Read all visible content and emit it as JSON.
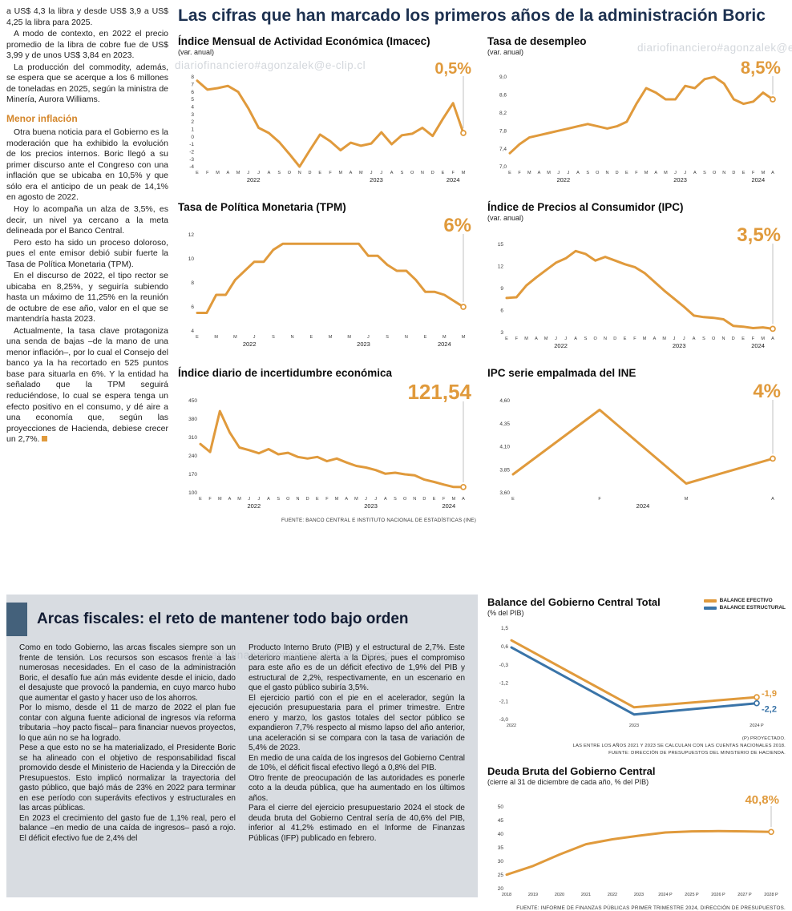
{
  "main_title": "Las cifras que han marcado los primeros años de la administración Boric",
  "watermark": "diariofinanciero#agonzalek@e-clip.cl",
  "article": {
    "paragraphs": [
      "a US$ 4,3 la libra y desde US$ 3,9 a US$ 4,25 la libra para 2025.",
      "A modo de contexto, en 2022 el precio promedio de la libra de cobre fue de US$ 3,99 y de unos US$ 3,84 en 2023.",
      "La producción del commodity, además, se espera que se acerque a los 6 millones de toneladas en 2025, según la ministra de Minería, Aurora Williams."
    ],
    "subhead": "Menor inflación",
    "paragraphs2": [
      "Otra buena noticia para el Gobierno es la moderación que ha exhibido la evolución de los precios internos. Boric llegó a su primer discurso ante el Congreso con una inflación que se ubicaba en 10,5% y que sólo era el anticipo de un peak de 14,1% en agosto de 2022.",
      "Hoy lo acompaña un alza de 3,5%, es decir, un nivel ya cercano a la meta delineada por el Banco Central.",
      "Pero esto ha sido un proceso doloroso, pues el ente emisor debió subir fuerte la Tasa de Política Monetaria (TPM).",
      "En el discurso de 2022, el tipo rector se ubicaba en 8,25%, y seguiría subiendo hasta un máximo de 11,25% en la reunión de octubre de ese año, valor en el que se mantendría hasta 2023.",
      "Actualmente, la tasa clave protagoniza una senda de bajas –de la mano de una menor inflación–, por lo cual el Consejo del banco ya la ha recortado en 525 puntos base para situarla en 6%. Y la entidad ha señalado que la TPM seguirá reduciéndose, lo cual se espera tenga un efecto positivo en el consumo, y dé aire a una economía que, según las proyecciones de Hacienda, debiese crecer un 2,7%."
    ]
  },
  "fiscal": {
    "title": "Arcas fiscales: el reto de mantener todo bajo orden",
    "col1": [
      "Como en todo Gobierno, las arcas fiscales siempre son un frente de tensión. Los recursos son escasos frente a las numerosas necesidades. En el caso de la administración Boric, el desafío fue aún más evidente desde el inicio, dado el desajuste que provocó la pandemia, en cuyo marco hubo que aumentar el gasto y hacer uso de los ahorros.",
      "Por lo mismo, desde el 11 de marzo de 2022 el plan fue contar con alguna fuente adicional de ingresos vía reforma tributaria –hoy pacto fiscal– para financiar nuevos proyectos, lo que aún no se ha logrado.",
      "Pese a que esto no se ha materializado, el Presidente Boric se ha alineado con el objetivo de responsabilidad fiscal promovido desde el Ministerio de Hacienda y la Dirección de Presupuestos. Esto implicó normalizar la trayectoria del gasto público, que bajó más de 23% en 2022 para terminar en ese período con superávits efectivos y estructurales en las arcas públicas.",
      "En 2023 el crecimiento del gasto fue de 1,1% real, pero el balance –en medio de una caída de ingresos– pasó a rojo. El déficit efectivo fue de 2,4% del"
    ],
    "col2": [
      "Producto Interno Bruto (PIB) y el estructural de 2,7%. Este deterioro mantiene alerta a la Dipres, pues el compromiso para este año es de un déficit efectivo de 1,9% del PIB y estructural de 2,2%, respectivamente, en un escenario en que el gasto público subiría 3,5%.",
      "El ejercicio partió con el pie en el acelerador, según la ejecución presupuestaria para el primer trimestre. Entre enero y marzo, los gastos totales del sector público se expandieron 7,7% respecto al mismo lapso del año anterior, una aceleración si se compara con la tasa de variación de 5,4% de 2023.",
      "En medio de una caída de los ingresos del Gobierno Central de 10%, el déficit fiscal efectivo llegó a 0,8% del PIB.",
      "Otro frente de preocupación de las autoridades es ponerle coto a la deuda pública, que ha aumentado en los últimos años.",
      "Para el cierre del ejercicio presupuestario 2024 el stock de deuda bruta del Gobierno Central sería de 40,6% del PIB, inferior al 41,2% estimado en el Informe de Finanzas Públicas (IFP) publicado en febrero."
    ]
  },
  "chart_data": [
    {
      "type": "line",
      "title": "Índice Mensual de Actividad Económica (Imacec)",
      "subtitle": "(var. anual)",
      "ylim": [
        -4,
        8
      ],
      "yticks": [
        {
          "v": 8,
          "label": "8"
        },
        {
          "v": 7,
          "label": "7"
        },
        {
          "v": 6,
          "label": "6"
        },
        {
          "v": 5,
          "label": "5"
        },
        {
          "v": 4,
          "label": "4"
        },
        {
          "v": 3,
          "label": "3"
        },
        {
          "v": 2,
          "label": "2"
        },
        {
          "v": 1,
          "label": "1"
        },
        {
          "v": 0,
          "label": "0"
        },
        {
          "v": -1,
          "label": "-1"
        },
        {
          "v": -2,
          "label": "-2"
        },
        {
          "v": -3,
          "label": "-3"
        },
        {
          "v": -4,
          "label": "-4"
        }
      ],
      "xlabels": [
        "E",
        "F",
        "M",
        "A",
        "M",
        "J",
        "J",
        "A",
        "S",
        "O",
        "N",
        "D",
        "E",
        "F",
        "M",
        "A",
        "M",
        "J",
        "J",
        "A",
        "S",
        "O",
        "N",
        "D",
        "E",
        "F",
        "M"
      ],
      "years": [
        {
          "label": "2022",
          "from": 0,
          "to": 11
        },
        {
          "label": "2023",
          "from": 12,
          "to": 23
        },
        {
          "label": "2024",
          "from": 24,
          "to": 26
        }
      ],
      "series": [
        {
          "name": "Imacec",
          "color": "#E09A3C",
          "width": 3,
          "values": [
            7.5,
            6.3,
            6.5,
            6.8,
            6.0,
            3.8,
            1.2,
            0.5,
            -0.7,
            -2.3,
            -4.0,
            -1.8,
            0.3,
            -0.6,
            -1.8,
            -0.8,
            -1.2,
            -0.9,
            0.6,
            -1.0,
            0.2,
            0.4,
            1.2,
            0.1,
            2.4,
            4.5,
            0.5
          ]
        }
      ],
      "end_label": {
        "text": "0,5%",
        "size": 20,
        "y": 20,
        "color": "#E09A3C"
      },
      "margins": {
        "l": 24,
        "r": 16,
        "t": 24,
        "b": 24
      }
    },
    {
      "type": "line",
      "title": "Tasa de desempleo",
      "subtitle": "(var. anual)",
      "ylim": [
        7.0,
        9.0
      ],
      "yticks": [
        {
          "v": 9.0,
          "label": "9,0"
        },
        {
          "v": 8.6,
          "label": "8,6"
        },
        {
          "v": 8.2,
          "label": "8,2"
        },
        {
          "v": 7.8,
          "label": "7,8"
        },
        {
          "v": 7.4,
          "label": "7,4"
        },
        {
          "v": 7.0,
          "label": "7,0"
        }
      ],
      "xlabels": [
        "E",
        "F",
        "M",
        "A",
        "M",
        "J",
        "J",
        "A",
        "S",
        "O",
        "N",
        "D",
        "E",
        "F",
        "M",
        "A",
        "M",
        "J",
        "J",
        "A",
        "S",
        "O",
        "N",
        "D",
        "E",
        "F",
        "M",
        "A"
      ],
      "years": [
        {
          "label": "2022",
          "from": 0,
          "to": 11
        },
        {
          "label": "2023",
          "from": 12,
          "to": 23
        },
        {
          "label": "2024",
          "from": 24,
          "to": 27
        }
      ],
      "series": [
        {
          "name": "Tasa de desempleo",
          "color": "#E09A3C",
          "width": 3,
          "values": [
            7.3,
            7.5,
            7.65,
            7.7,
            7.75,
            7.8,
            7.85,
            7.9,
            7.95,
            7.9,
            7.85,
            7.9,
            8.0,
            8.4,
            8.75,
            8.65,
            8.5,
            8.5,
            8.8,
            8.75,
            8.95,
            9.0,
            8.85,
            8.5,
            8.4,
            8.45,
            8.65,
            8.5
          ]
        }
      ],
      "end_label": {
        "text": "8,5%",
        "size": 22,
        "y": 20,
        "color": "#E09A3C"
      },
      "margins": {
        "l": 28,
        "r": 16,
        "t": 24,
        "b": 24
      }
    },
    {
      "type": "line",
      "title": "Tasa de Política Monetaria (TPM)",
      "subtitle": "",
      "ylim": [
        4,
        12
      ],
      "yticks": [
        {
          "v": 12,
          "label": "12"
        },
        {
          "v": 10,
          "label": "10"
        },
        {
          "v": 8,
          "label": "8"
        },
        {
          "v": 6,
          "label": "6"
        },
        {
          "v": 4,
          "label": "4"
        }
      ],
      "xlabels": [
        "E",
        "",
        "M",
        "",
        "M",
        "",
        "J",
        "",
        "S",
        "",
        "N",
        "",
        "E",
        "",
        "M",
        "",
        "M",
        "",
        "J",
        "",
        "S",
        "",
        "N",
        "",
        "E",
        "",
        "M",
        "",
        "M"
      ],
      "years": [
        {
          "label": "2022",
          "from": 0,
          "to": 11
        },
        {
          "label": "2023",
          "from": 12,
          "to": 23
        },
        {
          "label": "2024",
          "from": 24,
          "to": 28
        }
      ],
      "series": [
        {
          "name": "TPM",
          "color": "#E09A3C",
          "width": 3,
          "values": [
            5.5,
            5.5,
            7.0,
            7.0,
            8.25,
            9.0,
            9.75,
            9.75,
            10.75,
            11.25,
            11.25,
            11.25,
            11.25,
            11.25,
            11.25,
            11.25,
            11.25,
            11.25,
            10.25,
            10.25,
            9.5,
            9.0,
            9.0,
            8.25,
            7.25,
            7.25,
            7.0,
            6.5,
            6.0
          ]
        }
      ],
      "end_label": {
        "text": "6%",
        "size": 24,
        "y": 22,
        "color": "#E09A3C"
      },
      "margins": {
        "l": 24,
        "r": 16,
        "t": 26,
        "b": 24
      }
    },
    {
      "type": "line",
      "title": "Índice de Precios al Consumidor (IPC)",
      "subtitle": "(var. anual)",
      "ylim": [
        3,
        15
      ],
      "yticks": [
        {
          "v": 15,
          "label": "15"
        },
        {
          "v": 12,
          "label": "12"
        },
        {
          "v": 9,
          "label": "9"
        },
        {
          "v": 6,
          "label": "6"
        },
        {
          "v": 3,
          "label": "3"
        }
      ],
      "xlabels": [
        "E",
        "F",
        "M",
        "A",
        "M",
        "J",
        "J",
        "A",
        "S",
        "O",
        "N",
        "D",
        "E",
        "F",
        "M",
        "A",
        "M",
        "J",
        "J",
        "A",
        "S",
        "O",
        "N",
        "D",
        "E",
        "F",
        "M",
        "A"
      ],
      "years": [
        {
          "label": "2022",
          "from": 0,
          "to": 11
        },
        {
          "label": "2023",
          "from": 12,
          "to": 23
        },
        {
          "label": "2024",
          "from": 24,
          "to": 27
        }
      ],
      "series": [
        {
          "name": "IPC",
          "color": "#E09A3C",
          "width": 3,
          "values": [
            7.7,
            7.8,
            9.4,
            10.5,
            11.5,
            12.5,
            13.1,
            14.1,
            13.7,
            12.8,
            13.3,
            12.8,
            12.3,
            11.9,
            11.1,
            9.9,
            8.7,
            7.6,
            6.5,
            5.3,
            5.1,
            5.0,
            4.8,
            3.9,
            3.8,
            3.6,
            3.7,
            3.5
          ]
        }
      ],
      "end_label": {
        "text": "3,5%",
        "size": 24,
        "y": 22,
        "color": "#E09A3C"
      },
      "margins": {
        "l": 24,
        "r": 16,
        "t": 26,
        "b": 24
      }
    },
    {
      "type": "line",
      "title": "Índice diario de incertidumbre económica",
      "subtitle": "",
      "ylim": [
        100,
        450
      ],
      "yticks": [
        {
          "v": 450,
          "label": "450"
        },
        {
          "v": 380,
          "label": "380"
        },
        {
          "v": 310,
          "label": "310"
        },
        {
          "v": 240,
          "label": "240"
        },
        {
          "v": 170,
          "label": "170"
        },
        {
          "v": 100,
          "label": "100"
        }
      ],
      "xlabels": [
        "E",
        "F",
        "M",
        "A",
        "M",
        "J",
        "J",
        "A",
        "S",
        "O",
        "N",
        "D",
        "E",
        "F",
        "M",
        "A",
        "M",
        "J",
        "J",
        "A",
        "S",
        "O",
        "N",
        "D",
        "E",
        "F",
        "M",
        "A"
      ],
      "years": [
        {
          "label": "2022",
          "from": 0,
          "to": 11
        },
        {
          "label": "2023",
          "from": 12,
          "to": 23
        },
        {
          "label": "2024",
          "from": 24,
          "to": 27
        }
      ],
      "series": [
        {
          "name": "Incertidumbre económica",
          "color": "#E09A3C",
          "width": 3,
          "values": [
            285,
            255,
            410,
            330,
            272,
            262,
            250,
            266,
            246,
            252,
            236,
            230,
            236,
            220,
            230,
            215,
            202,
            196,
            186,
            172,
            176,
            170,
            166,
            150,
            141,
            131,
            122,
            121.54
          ]
        }
      ],
      "end_label": {
        "text": "121,54",
        "size": 26,
        "y": 24,
        "color": "#E09A3C"
      },
      "source": "FUENTE: BANCO CENTRAL E INSTITUTO NACIONAL DE ESTADÍSTICAS (INE)",
      "margins": {
        "l": 28,
        "r": 16,
        "t": 26,
        "b": 24
      }
    },
    {
      "type": "line",
      "title": "IPC serie empalmada del INE",
      "subtitle": "",
      "ylim": [
        3.6,
        4.6
      ],
      "yticks": [
        {
          "v": 4.6,
          "label": "4,60"
        },
        {
          "v": 4.35,
          "label": "4,35"
        },
        {
          "v": 4.1,
          "label": "4,10"
        },
        {
          "v": 3.85,
          "label": "3,85"
        },
        {
          "v": 3.6,
          "label": "3,60"
        }
      ],
      "xlabels": [
        "E",
        "F",
        "M",
        "A"
      ],
      "years": [
        {
          "label": "2024",
          "from": 0,
          "to": 3
        }
      ],
      "series": [
        {
          "name": "IPC serie empalmada",
          "color": "#E09A3C",
          "width": 3,
          "values": [
            3.8,
            4.5,
            3.7,
            3.97
          ]
        }
      ],
      "end_label": {
        "text": "4%",
        "size": 24,
        "y": 22,
        "color": "#E09A3C"
      },
      "margins": {
        "l": 32,
        "r": 16,
        "t": 26,
        "b": 24
      }
    },
    {
      "type": "line",
      "title": "Balance del Gobierno Central Total",
      "subtitle": "(% del PIB)",
      "legend": [
        {
          "label": "BALANCE EFECTIVO",
          "color": "#E09A3C"
        },
        {
          "label": "BALANCE ESTRUCTURAL",
          "color": "#3A74A8"
        }
      ],
      "ylim": [
        -3.0,
        1.5
      ],
      "yticks": [
        {
          "v": 1.5,
          "label": "1,5"
        },
        {
          "v": 0.6,
          "label": "0,6"
        },
        {
          "v": -0.3,
          "label": "-0,3"
        },
        {
          "v": -1.2,
          "label": "-1,2"
        },
        {
          "v": -2.1,
          "label": "-2,1"
        },
        {
          "v": -3.0,
          "label": "-3,0"
        }
      ],
      "xlabels": [
        "2022",
        "2023",
        "2024 P"
      ],
      "series": [
        {
          "name": "Balance efectivo",
          "color": "#E09A3C",
          "width": 3,
          "values": [
            0.9,
            -2.4,
            -1.9
          ],
          "end_label": "-1,9",
          "label_dy": -1
        },
        {
          "name": "Balance estructural",
          "color": "#3A74A8",
          "width": 3,
          "values": [
            0.55,
            -2.75,
            -2.2
          ],
          "end_label": "-2,2",
          "label_dy": 11
        }
      ],
      "notes": [
        "(P) PROYECTADO.",
        "LAS ENTRE LOS AÑOS 2021 Y 2023 SE CALCULAN  CON LAS CUENTAS NACIONALES 2018.",
        "FUENTE: DIRECCIÓN DE PRESUPUESTOS DEL MINISTERIO DE HACIENDA."
      ],
      "margins": {
        "l": 30,
        "r": 36,
        "t": 12,
        "b": 14
      }
    },
    {
      "type": "line",
      "title": "Deuda Bruta del Gobierno Central",
      "subtitle": "(cierre al 31 de diciembre de cada año, % del PIB)",
      "ylim": [
        20,
        50
      ],
      "yticks": [
        {
          "v": 50,
          "label": "50"
        },
        {
          "v": 45,
          "label": "45"
        },
        {
          "v": 40,
          "label": "40"
        },
        {
          "v": 35,
          "label": "35"
        },
        {
          "v": 30,
          "label": "30"
        },
        {
          "v": 25,
          "label": "25"
        },
        {
          "v": 20,
          "label": "20"
        }
      ],
      "xlabels": [
        "2018",
        "2019",
        "2020",
        "2021",
        "2022",
        "2023",
        "2024 P",
        "2025 P",
        "2026 P",
        "2027 P",
        "2028 P"
      ],
      "series": [
        {
          "name": "Deuda bruta",
          "color": "#E09A3C",
          "width": 3,
          "values": [
            25.1,
            28.3,
            32.5,
            36.3,
            38.1,
            39.4,
            40.6,
            41.0,
            41.1,
            41.0,
            40.8
          ]
        }
      ],
      "end_label": {
        "text": "40,8%",
        "size": 15,
        "y": 20,
        "color": "#E09A3C"
      },
      "source": "FUENTE: INFORME DE FINANZAS PÚBLICAS PRIMER TRIMESTRE 2024, DIRECCIÓN DE PRESUPUESTOS.",
      "margins": {
        "l": 24,
        "r": 18,
        "t": 24,
        "b": 14
      }
    }
  ]
}
